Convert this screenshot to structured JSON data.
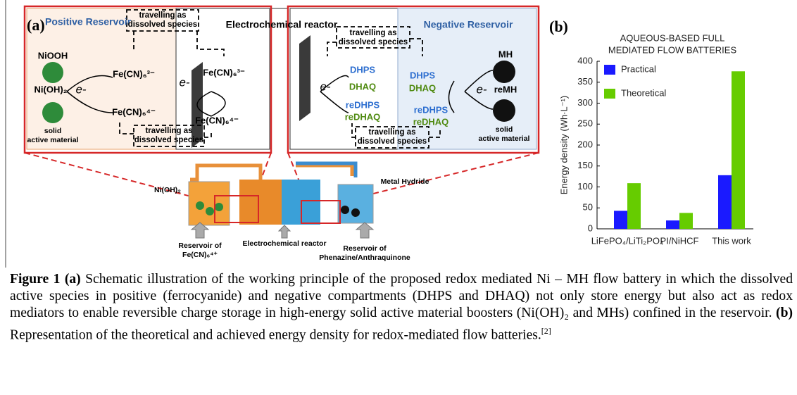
{
  "panel_a": {
    "label": "(a)",
    "positive_reservoir": "Positive Reservoir",
    "reactor": "Electrochemical reactor",
    "negative_reservoir": "Negative Reservoir",
    "travel_top_left": [
      "travelling as",
      "dissolved species"
    ],
    "travel_top_right": [
      "travelling as",
      "dissolved species"
    ],
    "travel_bottom_left": [
      "travelling as",
      "dissolved species"
    ],
    "travel_bottom_right": [
      "travelling as",
      "dissolved species"
    ],
    "left": {
      "niooh": "NiOOH",
      "nioh2": "Ni(OH)₂",
      "e1": "e-",
      "fe3": "Fe(CN)₆³⁻",
      "fe4": "Fe(CN)₆⁴⁻",
      "solid": [
        "solid",
        "active material"
      ]
    },
    "middle_left": {
      "fe3": "Fe(CN)₆³⁻",
      "fe4": "Fe(CN)₆⁴⁻",
      "e": "e-"
    },
    "middle_right": {
      "e": "e-",
      "dhps": "DHPS",
      "dhaq": "DHAQ",
      "redhps": "reDHPS",
      "redhaq": "reDHAQ"
    },
    "right": {
      "dhps": "DHPS",
      "dhaq": "DHAQ",
      "redhps": "reDHPS",
      "redhaq": "reDHAQ",
      "e": "e-",
      "mh": "MH",
      "remh": "reMH",
      "solid": [
        "solid",
        "active material"
      ]
    },
    "bottom": {
      "nioh2": "Ni(OH)₂",
      "metal_hydride": "Metal Hydride",
      "reservoir_pos": [
        "Reservoir of",
        "Fe(CN)₆⁴⁺"
      ],
      "reactor": "Electrochemical reactor",
      "reservoir_neg": [
        "Reservoir of",
        "Phenazine/Anthraquinone"
      ]
    }
  },
  "chart_data": {
    "type": "bar",
    "panel_label": "(b)",
    "title": [
      "AQUEOUS-BASED FULL",
      "MEDIATED FLOW BATTERIES"
    ],
    "y_label": "Energy density (Wh·L⁻¹)",
    "categories": [
      "LiFePO₄/LiTi₂PO₄",
      "PI/NiHCF",
      "This work"
    ],
    "series": [
      {
        "name": "Practical",
        "color": "#1a1aff",
        "values": [
          43,
          20,
          128
        ]
      },
      {
        "name": "Theoretical",
        "color": "#66cc00",
        "values": [
          109,
          38,
          376
        ]
      }
    ],
    "ylim": [
      0,
      400
    ],
    "yticks": [
      0,
      50,
      100,
      150,
      200,
      250,
      300,
      350,
      400
    ],
    "legend": "upper left"
  },
  "caption": {
    "label": "Figure 1",
    "part_a": {
      "label": "(a)",
      "text": "Schematic illustration of the working principle of the proposed redox mediated Ni – MH flow battery in which the dissolved active species in positive (ferrocyanide) and negative compartments (DHPS and DHAQ) not only store energy but also act as redox mediators to enable reversible charge storage in high-energy solid active material boosters (Ni(OH)₂ and MHs) confined in the reservoir."
    },
    "part_b": {
      "label": "(b)",
      "text": "Representation of the theoretical and achieved energy density for redox-mediated flow batteries."
    },
    "reference": "[2]"
  }
}
